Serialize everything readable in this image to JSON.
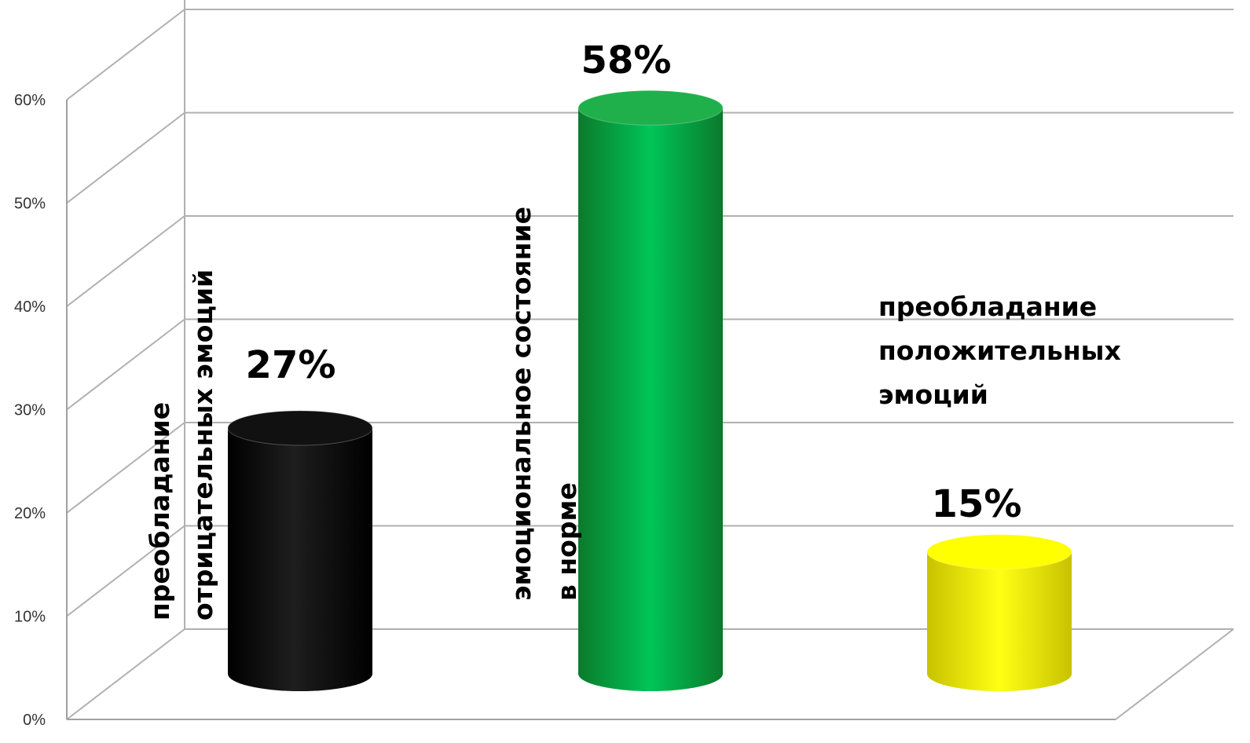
{
  "chart_data": {
    "type": "bar",
    "style": "3d-cylinder",
    "categories": [
      [
        "преобладание",
        "отрицательных эмоций"
      ],
      [
        "эмоциональное состояние",
        "в норме"
      ],
      [
        "преобладание",
        "положительных",
        "эмоций"
      ]
    ],
    "values": [
      27,
      58,
      15
    ],
    "value_labels": [
      "27%",
      "58%",
      "15%"
    ],
    "bar_colors": [
      "#111111",
      "#1fb04c",
      "#ffff00"
    ],
    "y_ticks": [
      "0%",
      "10%",
      "20%",
      "30%",
      "40%",
      "50%",
      "60%"
    ],
    "ylim": [
      0,
      60
    ],
    "grid": true,
    "legend": "none"
  }
}
